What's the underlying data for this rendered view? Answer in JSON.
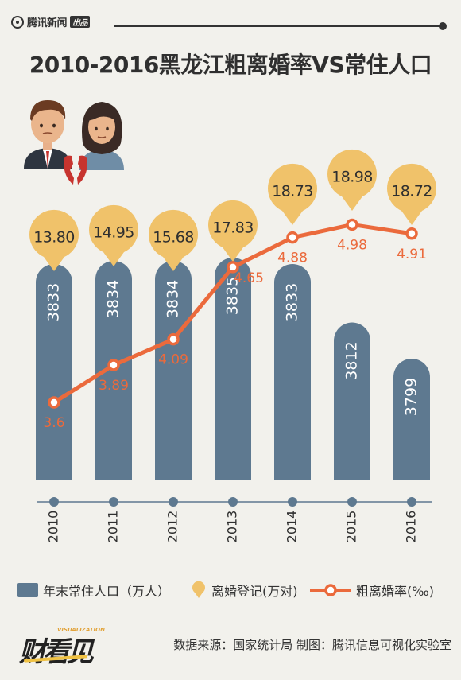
{
  "header": {
    "brand": "腾讯新闻",
    "brand_tag": "出品"
  },
  "title": "2010-2016黑龙江粗离婚率VS常住人口",
  "chart_data": {
    "type": "bar",
    "categories": [
      "2010",
      "2011",
      "2012",
      "2013",
      "2014",
      "2015",
      "2016"
    ],
    "series": [
      {
        "name": "年末常住人口（万人）",
        "type": "bar",
        "values": [
          3833,
          3834,
          3834,
          3835,
          3833,
          3812,
          3799
        ]
      },
      {
        "name": "离婚登记(万对)",
        "type": "pin",
        "values": [
          13.8,
          14.95,
          15.68,
          17.83,
          18.73,
          18.98,
          18.72
        ]
      },
      {
        "name": "粗离婚率(‰)",
        "type": "line",
        "values": [
          3.6,
          3.89,
          4.09,
          4.65,
          4.88,
          4.98,
          4.91
        ]
      }
    ],
    "bar_labels": [
      "3833",
      "3834",
      "3834",
      "3835",
      "3833",
      "3812",
      "3799"
    ],
    "pin_labels": [
      "13.80",
      "14.95",
      "15.68",
      "17.83",
      "18.73",
      "18.98",
      "18.72"
    ],
    "line_labels": [
      "3.6",
      "3.89",
      "4.09",
      "4.65",
      "4.88",
      "4.98",
      "4.91"
    ],
    "colors": {
      "bar": "#5e7990",
      "pin": "#f0c26a",
      "line": "#eb6a3c",
      "line_label": "#eb6a3c",
      "axis": "#5e7990"
    }
  },
  "legend": {
    "bar": "年末常住人口（万人）",
    "pin": "离婚登记(万对)",
    "line": "粗离婚率(‰)"
  },
  "footer": {
    "logo": "财看见",
    "logo_sub": "VISUALIZATION",
    "source": "数据来源：国家统计局 制图：腾讯信息可视化实验室"
  },
  "icons": [
    "couple-icon",
    "broken-heart-icon"
  ]
}
